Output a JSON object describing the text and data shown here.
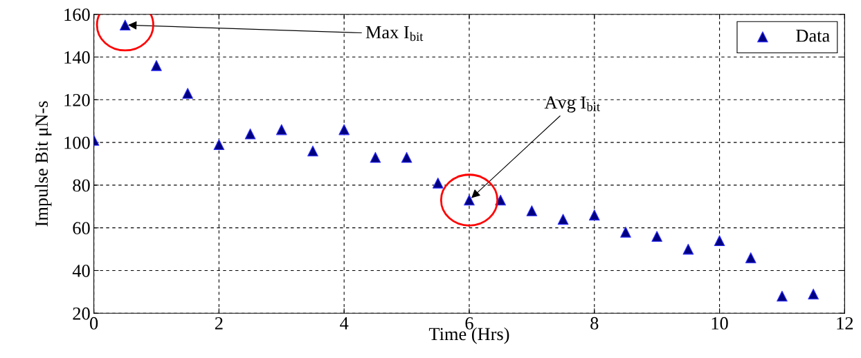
{
  "chart_data": {
    "type": "scatter",
    "xlabel": "Time (Hrs)",
    "ylabel": "Impulse Bit μN-s",
    "x": [
      0,
      0.5,
      1,
      1.5,
      2,
      2.5,
      3,
      3.5,
      4,
      4.5,
      5,
      5.5,
      6,
      6.5,
      7,
      7.5,
      8,
      8.5,
      9,
      9.5,
      10,
      10.5,
      11,
      11.5
    ],
    "series": [
      {
        "name": "Data",
        "color": "#000080",
        "values": [
          101,
          155,
          136,
          123,
          99,
          104,
          106,
          96,
          106,
          93,
          93,
          81,
          73,
          73,
          68,
          64,
          66,
          58,
          56,
          50,
          54,
          46,
          28,
          29
        ]
      }
    ],
    "xlim": [
      0,
      12
    ],
    "xticks": [
      0,
      2,
      4,
      6,
      8,
      10,
      12
    ],
    "ylim": [
      20,
      160
    ],
    "yticks": [
      20,
      40,
      60,
      80,
      100,
      120,
      140,
      160
    ],
    "grid": true,
    "legend": "top right",
    "marker": "triangle",
    "annotations": [
      {
        "text": "Max I$_{bit}$",
        "x": 0.5,
        "y": 155
      },
      {
        "text": "Avg I$_{bit}$",
        "x": 6,
        "y": 73
      }
    ]
  }
}
